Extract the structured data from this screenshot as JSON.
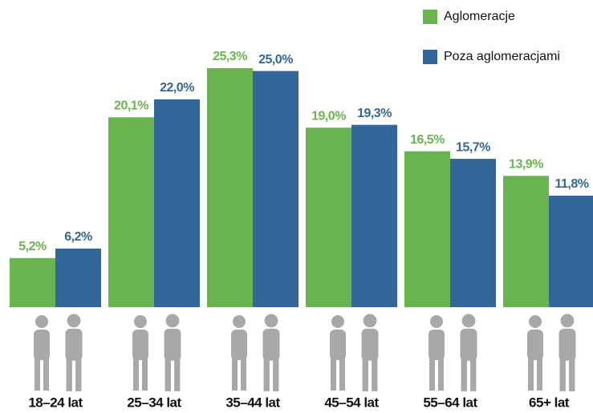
{
  "chart_data": {
    "type": "bar",
    "categories": [
      "18–24 lat",
      "25–34 lat",
      "35–44 lat",
      "45–54 lat",
      "55–64 lat",
      "65+ lat"
    ],
    "series": [
      {
        "name": "Aglomeracje",
        "color": "#6ab450",
        "values": [
          5.2,
          20.1,
          25.3,
          19.0,
          16.5,
          13.9
        ],
        "value_labels": [
          "5,2%",
          "20,1%",
          "25,3%",
          "19,0%",
          "16,5%",
          "13,9%"
        ]
      },
      {
        "name": "Poza aglomeracjami",
        "color": "#336699",
        "values": [
          6.2,
          22.0,
          25.0,
          19.3,
          15.7,
          11.8
        ],
        "value_labels": [
          "6,2%",
          "22,0%",
          "25,0%",
          "19,3%",
          "15,7%",
          "11,8%"
        ]
      }
    ],
    "legend": "top-right"
  }
}
